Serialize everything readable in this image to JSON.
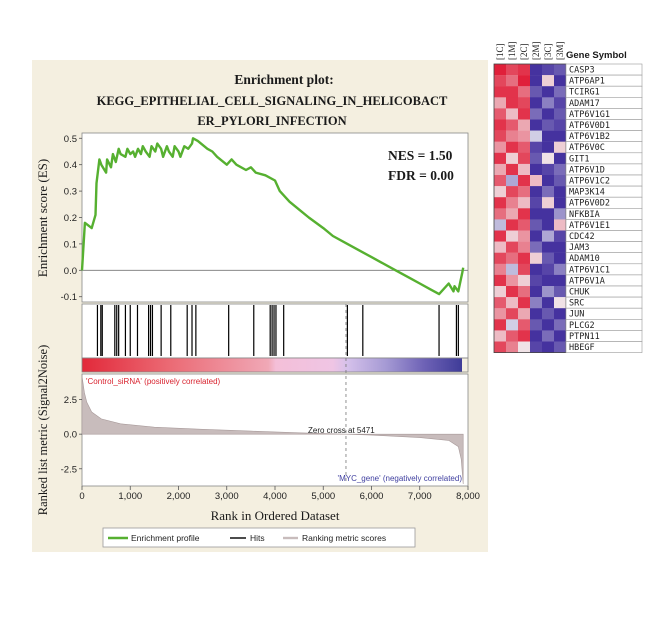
{
  "panel": {
    "title_line1": "Enrichment plot:",
    "title_line2": "KEGG_EPITHELIAL_CELL_SIGNALING_IN_HELICOBACT",
    "title_line3": "ER_PYLORI_INFECTION",
    "nes": "NES = 1.50",
    "fdr": "FDR = 0.00",
    "ylabel_es": "Enrichment score (ES)",
    "ylabel_rank": "Ranked list metric (Signal2Noise)",
    "xlabel": "Rank in Ordered Dataset",
    "pos_label": "'Control_siRNA' (positively correlated)",
    "neg_label": "'MYC_gene' (negatively correlated)",
    "zero_cross": "Zero cross at 5471",
    "legend": [
      "Enrichment profile",
      "Hits",
      "Ranking metric scores"
    ],
    "colors": {
      "es": "#56b030",
      "hits": "#000000",
      "metric": "#c8bcbc",
      "panel_bg": "#f4efe0",
      "pos": "#e8303e",
      "neg": "#4848a8"
    }
  },
  "chart_data": [
    {
      "type": "line",
      "name": "enrichment-score",
      "x": [
        0,
        60,
        200,
        280,
        300,
        360,
        400,
        500,
        520,
        600,
        640,
        700,
        760,
        800,
        900,
        940,
        1000,
        1060,
        1100,
        1160,
        1220,
        1260,
        1320,
        1400,
        1440,
        1520,
        1560,
        1640,
        1680,
        1760,
        1800,
        1880,
        1920,
        2000,
        2040,
        2120,
        2200,
        2280,
        2300,
        2400,
        2600,
        2700,
        2800,
        3000,
        3100,
        3200,
        3400,
        3500,
        3600,
        3800,
        4000,
        4100,
        4300,
        4500,
        4700,
        5000,
        5200,
        5500,
        5800,
        6000,
        6200,
        6500,
        6800,
        7000,
        7200,
        7400,
        7600,
        7700,
        7720,
        7800,
        7880,
        7900
      ],
      "y": [
        0.0,
        0.18,
        0.16,
        0.21,
        0.33,
        0.42,
        0.4,
        0.37,
        0.42,
        0.39,
        0.44,
        0.41,
        0.46,
        0.44,
        0.43,
        0.46,
        0.44,
        0.45,
        0.43,
        0.46,
        0.44,
        0.47,
        0.45,
        0.43,
        0.47,
        0.45,
        0.48,
        0.46,
        0.43,
        0.47,
        0.45,
        0.43,
        0.47,
        0.45,
        0.43,
        0.47,
        0.46,
        0.48,
        0.5,
        0.49,
        0.46,
        0.45,
        0.43,
        0.4,
        0.42,
        0.4,
        0.38,
        0.39,
        0.37,
        0.36,
        0.34,
        0.3,
        0.26,
        0.23,
        0.2,
        0.16,
        0.13,
        0.1,
        0.07,
        0.05,
        0.03,
        0.0,
        -0.03,
        -0.05,
        -0.07,
        -0.09,
        -0.05,
        -0.08,
        -0.06,
        -0.08,
        -0.01,
        0.01
      ],
      "ylabel": "Enrichment score (ES)",
      "ylim": [
        -0.12,
        0.52
      ],
      "yticks": [
        "0.5",
        "0.4",
        "0.3",
        "0.2",
        "0.1",
        "0.0",
        "-0.1"
      ]
    },
    {
      "type": "bar",
      "name": "hits",
      "x": [
        320,
        390,
        420,
        680,
        720,
        760,
        900,
        1000,
        1150,
        1380,
        1420,
        1460,
        1640,
        1840,
        2180,
        2280,
        2360,
        3040,
        3560,
        3900,
        3940,
        3980,
        4020,
        4180,
        5500,
        5820,
        7400,
        7760,
        7800
      ]
    },
    {
      "type": "area",
      "name": "ranked-list-metric",
      "x": [
        0,
        50,
        100,
        200,
        400,
        800,
        1500,
        2500,
        3500,
        4500,
        5471,
        6000,
        7000,
        7600,
        7800,
        7860,
        7900
      ],
      "y": [
        4.2,
        3.0,
        2.3,
        1.6,
        1.1,
        0.75,
        0.5,
        0.35,
        0.22,
        0.1,
        0.0,
        -0.07,
        -0.25,
        -0.45,
        -0.9,
        -1.8,
        -3.6
      ],
      "ylabel": "Ranked list metric (Signal2Noise)",
      "xlabel": "Rank in Ordered Dataset",
      "xlim": [
        0,
        8000
      ],
      "ylim": [
        -3.6,
        4.2
      ],
      "xticks": [
        "0",
        "1,000",
        "2,000",
        "3,000",
        "4,000",
        "5,000",
        "6,000",
        "7,000",
        "8,000"
      ],
      "yticks": [
        "2.5",
        "0.0",
        "-2.5"
      ]
    },
    {
      "type": "heatmap",
      "name": "leading-edge-genes",
      "columns": [
        "1C",
        "1M",
        "2C",
        "2M",
        "3C",
        "3M"
      ],
      "row_header": "Gene Symbol",
      "rows": [
        "CASP3",
        "ATP6AP1",
        "TCIRG1",
        "ADAM17",
        "ATP6V1G1",
        "ATP6V0D1",
        "ATP6V1B2",
        "ATP6V0C",
        "GIT1",
        "ATP6V1D",
        "ATP6V1C2",
        "MAP3K14",
        "ATP6V0D2",
        "NFKBIA",
        "ATP6V1E1",
        "CDC42",
        "JAM3",
        "ADAM10",
        "ATP6V1C1",
        "ATP6V1A",
        "CHUK",
        "SRC",
        "JUN",
        "PLCG2",
        "PTPN11",
        "HBEGF"
      ],
      "values": [
        [
          1.0,
          0.8,
          0.9,
          -0.9,
          -0.8,
          -0.7
        ],
        [
          0.8,
          0.6,
          1.0,
          -0.9,
          0.1,
          -0.9
        ],
        [
          0.9,
          0.9,
          0.6,
          -0.7,
          -0.9,
          -0.6
        ],
        [
          0.3,
          0.9,
          0.8,
          -0.9,
          -0.5,
          -0.8
        ],
        [
          0.7,
          0.2,
          0.9,
          -0.6,
          -0.9,
          -0.7
        ],
        [
          0.9,
          0.7,
          0.3,
          -0.9,
          -0.7,
          -0.8
        ],
        [
          0.8,
          0.5,
          0.4,
          -0.1,
          -0.9,
          -0.9
        ],
        [
          0.4,
          0.9,
          0.7,
          -0.8,
          -0.9,
          0.1
        ],
        [
          0.9,
          0.1,
          0.8,
          -0.7,
          0.0,
          -0.9
        ],
        [
          0.3,
          0.9,
          0.2,
          -0.9,
          -0.8,
          -0.6
        ],
        [
          0.7,
          -0.3,
          0.9,
          0.2,
          -0.9,
          -0.7
        ],
        [
          0.1,
          0.8,
          0.6,
          -0.9,
          -0.6,
          -0.9
        ],
        [
          0.9,
          0.5,
          0.2,
          -0.8,
          0.1,
          -0.9
        ],
        [
          0.6,
          0.3,
          0.9,
          -0.9,
          -0.9,
          -0.4
        ],
        [
          -0.2,
          0.9,
          0.7,
          -0.7,
          -0.9,
          0.2
        ],
        [
          0.9,
          0.1,
          0.4,
          -0.9,
          -0.3,
          -0.8
        ],
        [
          0.2,
          0.8,
          0.5,
          -0.6,
          -0.9,
          -0.9
        ],
        [
          0.8,
          0.6,
          0.9,
          0.1,
          -0.7,
          -0.9
        ],
        [
          0.5,
          -0.2,
          0.8,
          -0.9,
          -0.8,
          -0.5
        ],
        [
          0.9,
          0.4,
          0.1,
          -0.8,
          -0.9,
          -0.9
        ],
        [
          0.1,
          0.9,
          0.6,
          -0.9,
          -0.4,
          -0.7
        ],
        [
          0.7,
          0.2,
          0.9,
          -0.5,
          -0.9,
          0.0
        ],
        [
          0.4,
          0.8,
          0.3,
          -0.9,
          -0.7,
          -0.9
        ],
        [
          0.9,
          -0.1,
          0.7,
          -0.7,
          -0.9,
          -0.6
        ],
        [
          0.2,
          0.7,
          0.9,
          -0.9,
          -0.6,
          -0.9
        ],
        [
          0.8,
          0.5,
          0.0,
          -0.8,
          -0.9,
          -0.7
        ]
      ]
    }
  ]
}
